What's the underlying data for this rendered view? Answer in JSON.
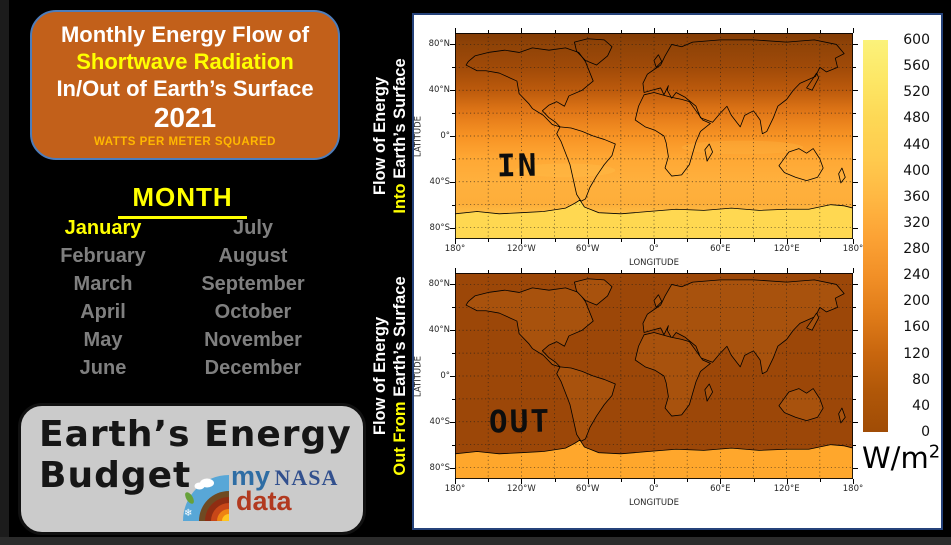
{
  "title_box": {
    "line1": "Monthly Energy Flow of",
    "line2": "Shortwave Radiation",
    "line3": "In/Out of Earth’s Surface",
    "year": "2021",
    "subtitle": "WATTS PER METER SQUARED",
    "bg_color": "#c2601a",
    "highlight_color": "#ffff00",
    "subtitle_color": "#ffb800"
  },
  "month_selector": {
    "heading": "MONTH",
    "selected": "January",
    "selected_color": "#ffff00",
    "item_color": "#7f7f7f",
    "columns": [
      [
        "January",
        "February",
        "March",
        "April",
        "May",
        "June"
      ],
      [
        "July",
        "August",
        "September",
        "October",
        "November",
        "December"
      ]
    ]
  },
  "side_labels": {
    "in": {
      "line1": "Flow of Energy",
      "highlight": "Into",
      "rest": " Earth’s Surface"
    },
    "out": {
      "line1": "Flow of Energy",
      "highlight": "Out From",
      "rest": " Earth’s Surface"
    },
    "highlight_color": "#ffff00"
  },
  "maps": {
    "xlabel": "LONGITUDE",
    "ylabel": "LATITUDE",
    "x_ticks": [
      "180°",
      "120°W",
      "60°W",
      "0°",
      "60°E",
      "120°E",
      "180°"
    ],
    "y_ticks": [
      "80°N",
      "40°N",
      "0°",
      "40°S",
      "80°S"
    ],
    "in_overlay": "IN",
    "out_overlay": "OUT"
  },
  "colorbar": {
    "ticks": [
      "600",
      "560",
      "520",
      "480",
      "440",
      "400",
      "360",
      "320",
      "280",
      "240",
      "200",
      "160",
      "120",
      "80",
      "40",
      "0"
    ],
    "unit_base": "W/m",
    "unit_exp": "2",
    "top_color": "#fbf27b",
    "bottom_color": "#a04c06"
  },
  "logo_box": {
    "title_line1": "Earth’s Energy",
    "title_line2": "Budget",
    "brand_my": "my",
    "brand_nasa": "NASA",
    "brand_data": "data",
    "brand_my_color": "#2e6da4",
    "brand_nasa_color": "#32508e",
    "brand_data_color": "#b23a20"
  },
  "chart_data": [
    {
      "type": "heatmap",
      "title": "IN — Flow of Energy Into Earth's Surface, January 2021",
      "xlabel": "LONGITUDE",
      "ylabel": "LATITUDE",
      "x_ticks": [
        "180°",
        "120°W",
        "60°W",
        "0°",
        "60°E",
        "120°E",
        "180°"
      ],
      "y_ticks": [
        "80°N",
        "40°N",
        "0°",
        "40°S",
        "80°S"
      ],
      "colorbar": {
        "label": "W/m²",
        "min": 0,
        "max": 600,
        "tick_step": 40
      },
      "pattern": "latitudinal gradient for January: dark low values over northern high latitudes increasing smoothly to bright high values over the southern hemisphere and Antarctica",
      "approx_zonal_means_wm2": {
        "80N": 30,
        "60N": 60,
        "40N": 120,
        "20N": 210,
        "0": 290,
        "20S": 350,
        "40S": 370,
        "60S": 400,
        "80S": 480
      }
    },
    {
      "type": "heatmap",
      "title": "OUT — Flow of Energy Out From Earth's Surface, January 2021",
      "xlabel": "LONGITUDE",
      "ylabel": "LATITUDE",
      "x_ticks": [
        "180°",
        "120°W",
        "60°W",
        "0°",
        "60°E",
        "120°E",
        "180°"
      ],
      "y_ticks": [
        "80°N",
        "40°N",
        "0°",
        "40°S",
        "80°S"
      ],
      "colorbar": {
        "label": "W/m²",
        "min": 0,
        "max": 600,
        "tick_step": 40
      },
      "pattern": "nearly uniform low values worldwide, slightly brighter over subtropical deserts, with a bright high-value band over Antarctica",
      "approx_zonal_means_wm2": {
        "80N": 100,
        "60N": 100,
        "40N": 110,
        "20N": 120,
        "0": 120,
        "20S": 120,
        "40S": 110,
        "60S": 160,
        "80S": 330
      }
    }
  ]
}
